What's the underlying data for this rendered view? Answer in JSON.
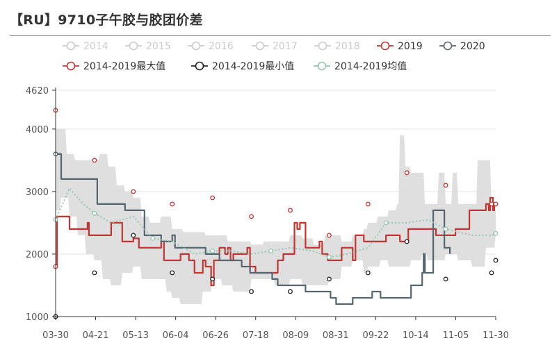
{
  "title": "【RU】9710子午胶与胶团价差",
  "colors": {
    "s2019": "#c23531",
    "s2020": "#546570",
    "max": "#c23531",
    "min": "#222222",
    "avg": "#91c7ae",
    "inactive": "#cccccc",
    "band": "#d9d9d9"
  },
  "legend": [
    {
      "name": "2014",
      "active": false
    },
    {
      "name": "2015",
      "active": false
    },
    {
      "name": "2016",
      "active": false
    },
    {
      "name": "2017",
      "active": false
    },
    {
      "name": "2018",
      "active": false
    },
    {
      "name": "2019",
      "active": true
    },
    {
      "name": "2020",
      "active": true
    },
    {
      "name": "2014-2019最大值",
      "active": true
    },
    {
      "name": "2014-2019最小值",
      "active": true
    },
    {
      "name": "2014-2019均值",
      "active": true
    }
  ],
  "chart_data": {
    "type": "line",
    "x_ticks": [
      "03-30",
      "04-21",
      "05-13",
      "06-04",
      "06-26",
      "07-18",
      "08-09",
      "08-31",
      "09-22",
      "10-14",
      "11-05",
      "11-30"
    ],
    "y_ticks": [
      1000,
      2000,
      3000,
      4000,
      4620
    ],
    "ylim": [
      1000,
      4620
    ],
    "grid": true,
    "legend_position": "top",
    "series": [
      {
        "name": "2019",
        "points": [
          [
            0,
            1800
          ],
          [
            1,
            2600
          ],
          [
            9,
            2600
          ],
          [
            10,
            2400
          ],
          [
            22,
            2400
          ],
          [
            23,
            2500
          ],
          [
            24,
            2300
          ],
          [
            36,
            2300
          ],
          [
            40,
            2500
          ],
          [
            48,
            2200
          ],
          [
            56,
            2250
          ],
          [
            60,
            2100
          ],
          [
            70,
            2100
          ],
          [
            76,
            2200
          ],
          [
            78,
            1900
          ],
          [
            86,
            1900
          ],
          [
            90,
            2000
          ],
          [
            96,
            1900
          ],
          [
            100,
            1700
          ],
          [
            102,
            1700
          ],
          [
            106,
            1900
          ],
          [
            108,
            1800
          ],
          [
            112,
            1500
          ],
          [
            114,
            1900
          ],
          [
            118,
            2100
          ],
          [
            122,
            2000
          ],
          [
            124,
            2100
          ],
          [
            126,
            1900
          ],
          [
            128,
            2000
          ],
          [
            134,
            2000
          ],
          [
            138,
            2100
          ],
          [
            140,
            1800
          ],
          [
            144,
            1700
          ],
          [
            156,
            1700
          ],
          [
            160,
            1900
          ],
          [
            164,
            2000
          ],
          [
            170,
            2000
          ],
          [
            172,
            2500
          ],
          [
            174,
            2400
          ],
          [
            176,
            2500
          ],
          [
            180,
            2100
          ],
          [
            186,
            2100
          ],
          [
            190,
            2200
          ],
          [
            192,
            2000
          ],
          [
            196,
            1900
          ],
          [
            202,
            1900
          ],
          [
            206,
            2100
          ],
          [
            212,
            2100
          ],
          [
            214,
            1900
          ],
          [
            216,
            2300
          ],
          [
            222,
            2200
          ],
          [
            232,
            2200
          ],
          [
            238,
            2300
          ],
          [
            242,
            2300
          ],
          [
            248,
            2200
          ],
          [
            254,
            2400
          ],
          [
            268,
            2400
          ],
          [
            274,
            2300
          ],
          [
            282,
            2300
          ],
          [
            288,
            2400
          ],
          [
            294,
            2400
          ],
          [
            298,
            2700
          ],
          [
            308,
            2700
          ],
          [
            310,
            2800
          ],
          [
            312,
            2700
          ],
          [
            313,
            2900
          ],
          [
            315,
            2700
          ],
          [
            316,
            2800
          ]
        ]
      },
      {
        "name": "2020",
        "points": [
          [
            0,
            3600
          ],
          [
            2,
            3600
          ],
          [
            4,
            3200
          ],
          [
            28,
            3200
          ],
          [
            30,
            2800
          ],
          [
            48,
            2800
          ],
          [
            50,
            2700
          ],
          [
            62,
            2700
          ],
          [
            64,
            2300
          ],
          [
            74,
            2300
          ],
          [
            76,
            2200
          ],
          [
            82,
            2200
          ],
          [
            84,
            2300
          ],
          [
            86,
            2100
          ],
          [
            106,
            2100
          ],
          [
            108,
            2000
          ],
          [
            116,
            2000
          ],
          [
            118,
            1900
          ],
          [
            132,
            1900
          ],
          [
            134,
            1800
          ],
          [
            140,
            1700
          ],
          [
            152,
            1700
          ],
          [
            156,
            1600
          ],
          [
            160,
            1500
          ],
          [
            176,
            1500
          ],
          [
            180,
            1400
          ],
          [
            192,
            1400
          ],
          [
            198,
            1300
          ],
          [
            202,
            1200
          ],
          [
            212,
            1200
          ],
          [
            214,
            1300
          ],
          [
            224,
            1300
          ],
          [
            228,
            1400
          ],
          [
            232,
            1400
          ],
          [
            234,
            1300
          ],
          [
            254,
            1300
          ],
          [
            256,
            1500
          ],
          [
            262,
            1500
          ],
          [
            264,
            1700
          ],
          [
            265,
            2000
          ],
          [
            266,
            1700
          ],
          [
            270,
            1700
          ],
          [
            272,
            2700
          ],
          [
            278,
            2700
          ],
          [
            280,
            2100
          ],
          [
            284,
            2000
          ]
        ]
      },
      {
        "name": "2014-2019最大值",
        "points": [
          [
            0,
            4300
          ],
          [
            28,
            3500
          ],
          [
            56,
            3000
          ],
          [
            84,
            2800
          ],
          [
            113,
            2900
          ],
          [
            141,
            2600
          ],
          [
            169,
            2700
          ],
          [
            197,
            2300
          ],
          [
            225,
            2800
          ],
          [
            253,
            3300
          ],
          [
            281,
            3100
          ],
          [
            314,
            2800
          ],
          [
            317,
            2800
          ]
        ]
      },
      {
        "name": "2014-2019最小值",
        "points": [
          [
            0,
            1000
          ],
          [
            28,
            1700
          ],
          [
            56,
            2300
          ],
          [
            84,
            1700
          ],
          [
            113,
            1600
          ],
          [
            141,
            1400
          ],
          [
            169,
            1400
          ],
          [
            197,
            1600
          ],
          [
            225,
            1700
          ],
          [
            253,
            2200
          ],
          [
            281,
            1600
          ],
          [
            314,
            1700
          ],
          [
            317,
            1900
          ]
        ]
      },
      {
        "name": "2014-2019均值",
        "points": [
          [
            0,
            2550
          ],
          [
            10,
            3050
          ],
          [
            20,
            2800
          ],
          [
            28,
            2650
          ],
          [
            40,
            2500
          ],
          [
            56,
            2600
          ],
          [
            70,
            2250
          ],
          [
            84,
            2200
          ],
          [
            100,
            2000
          ],
          [
            113,
            2050
          ],
          [
            126,
            2050
          ],
          [
            141,
            2000
          ],
          [
            155,
            2050
          ],
          [
            169,
            2100
          ],
          [
            185,
            2050
          ],
          [
            197,
            1950
          ],
          [
            210,
            2000
          ],
          [
            225,
            2100
          ],
          [
            238,
            2500
          ],
          [
            253,
            2500
          ],
          [
            268,
            2550
          ],
          [
            281,
            2400
          ],
          [
            300,
            2300
          ],
          [
            314,
            2300
          ],
          [
            317,
            2330
          ]
        ]
      }
    ],
    "band": {
      "upper": [
        [
          0,
          4000
        ],
        [
          4,
          4000
        ],
        [
          8,
          3600
        ],
        [
          14,
          3500
        ],
        [
          28,
          3500
        ],
        [
          32,
          3600
        ],
        [
          38,
          3400
        ],
        [
          44,
          3100
        ],
        [
          50,
          3000
        ],
        [
          56,
          2900
        ],
        [
          62,
          2600
        ],
        [
          68,
          2500
        ],
        [
          76,
          2600
        ],
        [
          84,
          2400
        ],
        [
          92,
          2350
        ],
        [
          100,
          2350
        ],
        [
          108,
          2300
        ],
        [
          116,
          2300
        ],
        [
          124,
          2200
        ],
        [
          132,
          2200
        ],
        [
          141,
          2150
        ],
        [
          150,
          2200
        ],
        [
          160,
          2200
        ],
        [
          169,
          2300
        ],
        [
          178,
          2250
        ],
        [
          186,
          2150
        ],
        [
          194,
          2300
        ],
        [
          197,
          2300
        ],
        [
          206,
          2200
        ],
        [
          214,
          2300
        ],
        [
          222,
          2400
        ],
        [
          225,
          2500
        ],
        [
          232,
          2600
        ],
        [
          240,
          2700
        ],
        [
          246,
          2800
        ],
        [
          248,
          3900
        ],
        [
          252,
          3400
        ],
        [
          256,
          3300
        ],
        [
          262,
          3300
        ],
        [
          266,
          2800
        ],
        [
          272,
          2800
        ],
        [
          276,
          3300
        ],
        [
          281,
          2800
        ],
        [
          286,
          3300
        ],
        [
          290,
          2800
        ],
        [
          300,
          2800
        ],
        [
          304,
          3500
        ],
        [
          310,
          3500
        ],
        [
          314,
          2700
        ],
        [
          317,
          2700
        ]
      ],
      "lower": [
        [
          0,
          2700
        ],
        [
          4,
          2900
        ],
        [
          10,
          2600
        ],
        [
          16,
          2300
        ],
        [
          22,
          2000
        ],
        [
          28,
          1900
        ],
        [
          34,
          1600
        ],
        [
          40,
          1500
        ],
        [
          48,
          1700
        ],
        [
          56,
          1800
        ],
        [
          62,
          1600
        ],
        [
          72,
          1600
        ],
        [
          80,
          1400
        ],
        [
          84,
          1300
        ],
        [
          90,
          1200
        ],
        [
          100,
          1200
        ],
        [
          106,
          1400
        ],
        [
          113,
          1600
        ],
        [
          120,
          1500
        ],
        [
          128,
          1400
        ],
        [
          136,
          1400
        ],
        [
          141,
          1600
        ],
        [
          150,
          1600
        ],
        [
          158,
          1500
        ],
        [
          169,
          1600
        ],
        [
          178,
          1500
        ],
        [
          186,
          1500
        ],
        [
          197,
          1600
        ],
        [
          206,
          1800
        ],
        [
          214,
          1900
        ],
        [
          222,
          1700
        ],
        [
          225,
          1800
        ],
        [
          234,
          1900
        ],
        [
          240,
          1800
        ],
        [
          248,
          1800
        ],
        [
          256,
          1900
        ],
        [
          264,
          2000
        ],
        [
          268,
          1900
        ],
        [
          276,
          1900
        ],
        [
          281,
          2000
        ],
        [
          290,
          1900
        ],
        [
          300,
          1800
        ],
        [
          310,
          2100
        ],
        [
          317,
          2300
        ]
      ]
    }
  }
}
